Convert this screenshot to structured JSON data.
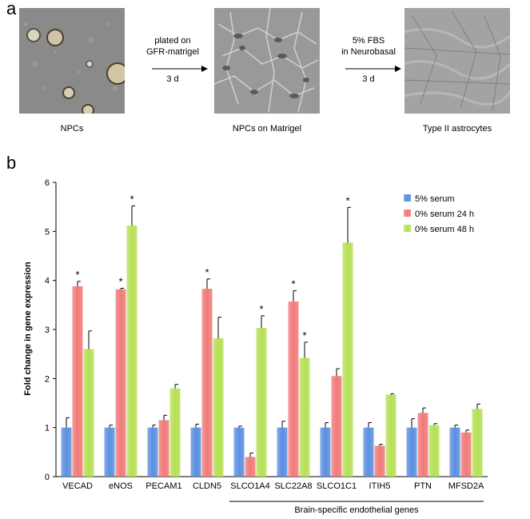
{
  "panel_a": {
    "letter": "a",
    "images": [
      {
        "caption": "NPCs"
      },
      {
        "caption": "NPCs on Matrigel"
      },
      {
        "caption": "Type II astrocytes"
      }
    ],
    "arrows": [
      {
        "line1": "plated on",
        "line2": "GFR-matrigel",
        "line3": "3 d"
      },
      {
        "line1": "5% FBS",
        "line2": "in Neurobasal",
        "line3": "3 d"
      }
    ]
  },
  "panel_b": {
    "letter": "b",
    "group_label": "Brain-specific endothelial genes"
  },
  "colors": {
    "s5": "#5b8fe0",
    "s0_24": "#f07a78",
    "s0_48": "#b5e055"
  },
  "chart_data": {
    "type": "bar",
    "ylabel": "Fold change in gene expression",
    "ylim": [
      0,
      6
    ],
    "yticks": [
      "0",
      "1",
      "2",
      "3",
      "4",
      "5",
      "6"
    ],
    "categories": [
      "VECAD",
      "eNOS",
      "PECAM1",
      "CLDN5",
      "SLCO1A4",
      "SLC22A8",
      "SLCO1C1",
      "ITIH5",
      "PTN",
      "MFSD2A"
    ],
    "series": [
      {
        "name": "5% serum",
        "values": [
          1.0,
          1.0,
          1.0,
          1.0,
          1.0,
          1.0,
          1.0,
          1.0,
          1.0,
          1.0
        ],
        "errors": [
          0.2,
          0.05,
          0.05,
          0.07,
          0.03,
          0.13,
          0.1,
          0.1,
          0.18,
          0.05
        ]
      },
      {
        "name": "0% serum 24 h",
        "values": [
          3.88,
          3.82,
          1.15,
          3.83,
          0.4,
          3.57,
          2.05,
          0.63,
          1.3,
          0.9
        ],
        "errors": [
          0.1,
          0.02,
          0.1,
          0.2,
          0.08,
          0.22,
          0.15,
          0.03,
          0.1,
          0.05
        ],
        "significant": [
          true,
          true,
          false,
          true,
          false,
          true,
          false,
          false,
          false,
          false
        ]
      },
      {
        "name": "0% serum 48 h",
        "values": [
          2.6,
          5.12,
          1.8,
          2.82,
          3.03,
          2.42,
          4.77,
          1.67,
          1.05,
          1.38
        ],
        "errors": [
          0.37,
          0.4,
          0.08,
          0.43,
          0.25,
          0.32,
          0.72,
          0.02,
          0.03,
          0.1
        ],
        "significant": [
          false,
          true,
          false,
          false,
          true,
          true,
          true,
          false,
          false,
          false
        ]
      }
    ],
    "significance_marker": "*",
    "legend_position": "top-right"
  }
}
